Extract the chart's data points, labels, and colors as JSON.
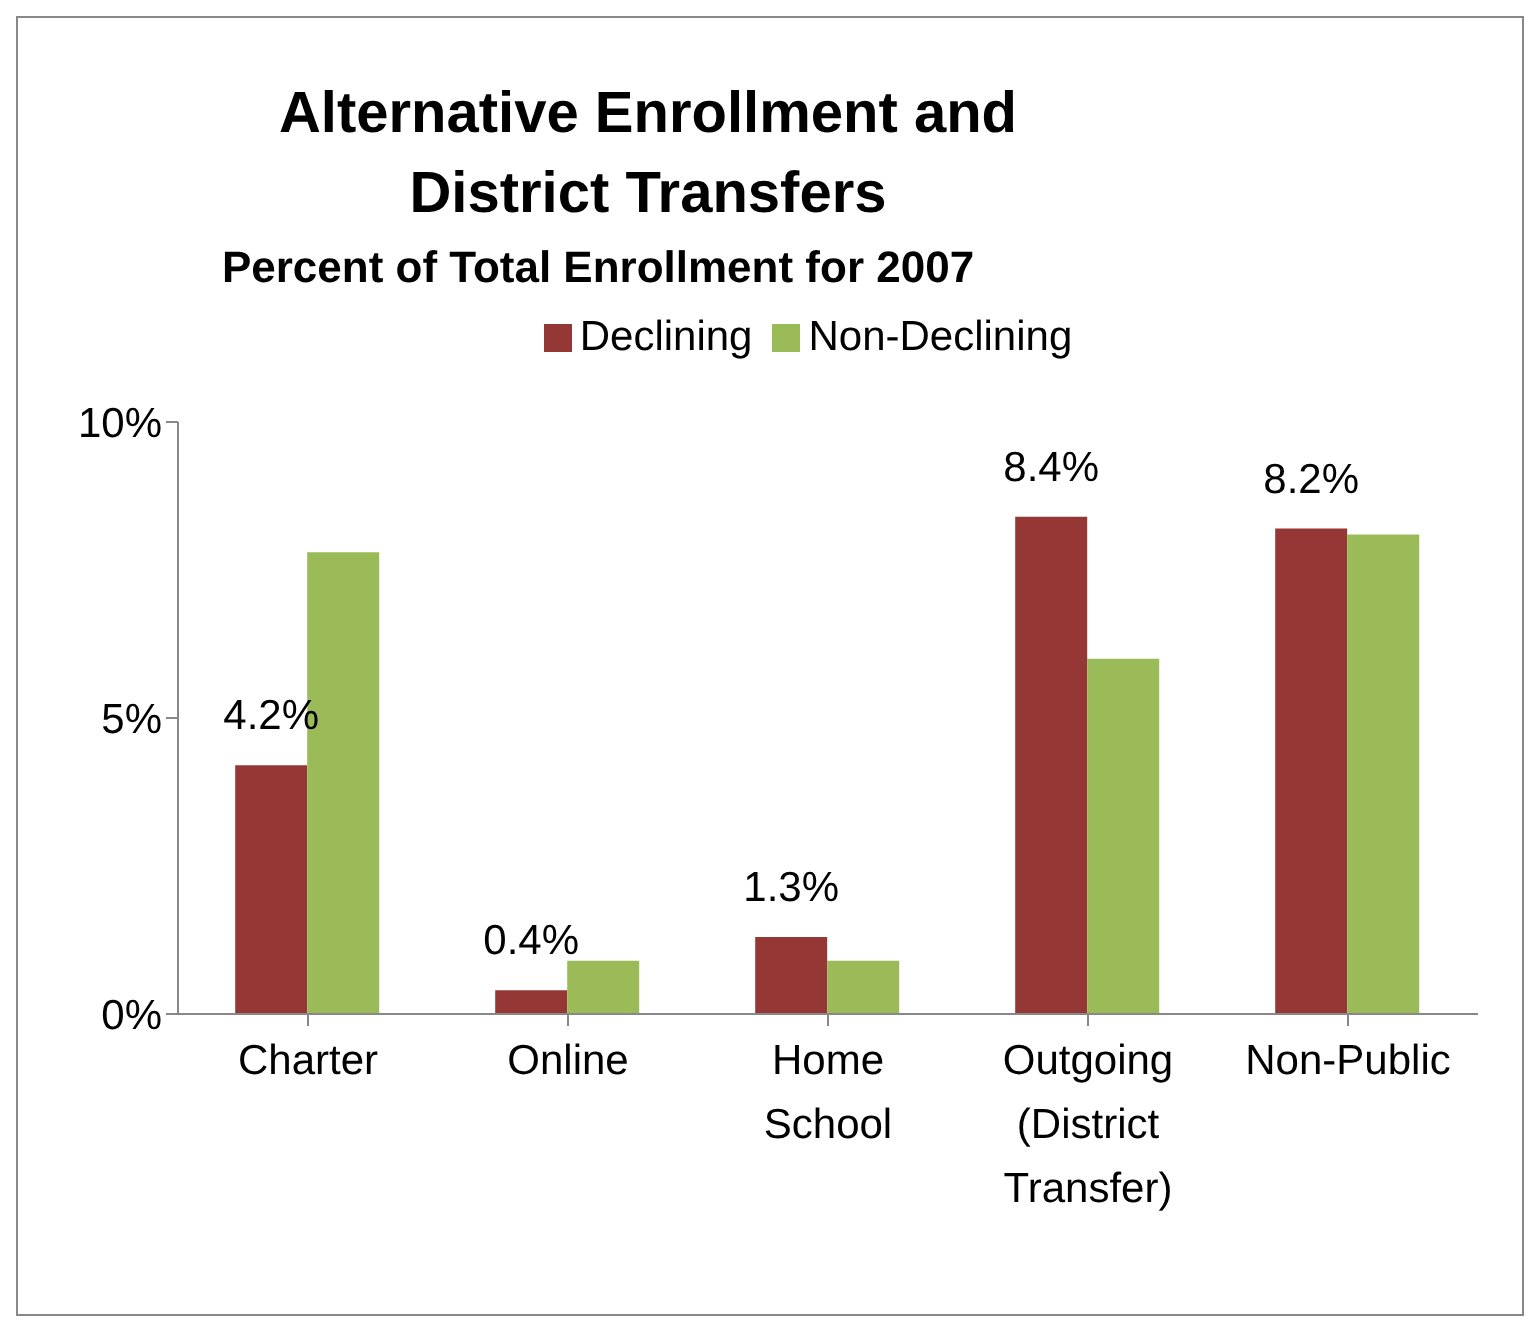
{
  "chart_data": {
    "type": "bar",
    "title": "Alternative Enrollment and District Transfers",
    "subtitle": "Percent of Total Enrollment for 2007",
    "categories": [
      "Charter",
      "Online",
      "Home School",
      "Outgoing (District Transfer)",
      "Non-Public"
    ],
    "series": [
      {
        "name": "Declining",
        "color": "#953735",
        "values": [
          4.2,
          0.4,
          1.3,
          8.4,
          8.2
        ],
        "value_labels": [
          "4.2%",
          "0.4%",
          "1.3%",
          "8.4%",
          "8.2%"
        ]
      },
      {
        "name": "Non-Declining",
        "color": "#9bbb59",
        "values": [
          7.8,
          0.9,
          0.9,
          6.0,
          8.1
        ]
      }
    ],
    "ylim": [
      0,
      10
    ],
    "yticks": [
      {
        "value": 0,
        "label": "0%"
      },
      {
        "value": 5,
        "label": "5%"
      },
      {
        "value": 10,
        "label": "10%"
      }
    ],
    "grid": false,
    "legend": "top"
  }
}
